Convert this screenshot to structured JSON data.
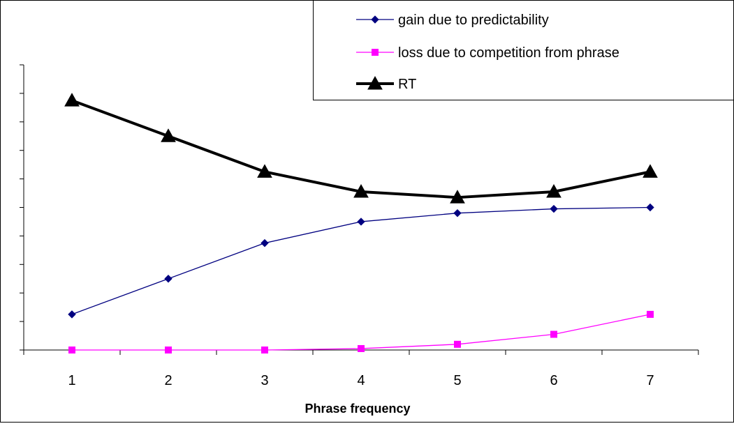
{
  "chart_data": {
    "type": "line",
    "title": "",
    "xlabel": "Phrase frequency",
    "ylabel": "",
    "categories": [
      "1",
      "2",
      "3",
      "4",
      "5",
      "6",
      "7"
    ],
    "ylim": [
      0,
      10
    ],
    "y_ticks_count": 10,
    "y_tick_labels_shown": false,
    "grid": false,
    "legend_position": "top-right",
    "series": [
      {
        "name": "gain due to predictability",
        "values": [
          1.25,
          2.5,
          3.75,
          4.5,
          4.8,
          4.95,
          5.0
        ],
        "color": "#000080",
        "marker": "diamond",
        "line_style": "thin"
      },
      {
        "name": "loss due to competition from phrase",
        "values": [
          0.0,
          0.0,
          0.0,
          0.05,
          0.2,
          0.55,
          1.25
        ],
        "color": "#ff00ff",
        "marker": "square",
        "line_style": "thin"
      },
      {
        "name": "RT",
        "values": [
          8.75,
          7.5,
          6.25,
          5.55,
          5.35,
          5.55,
          6.25
        ],
        "color": "#000000",
        "marker": "triangle",
        "line_style": "thick"
      }
    ]
  }
}
